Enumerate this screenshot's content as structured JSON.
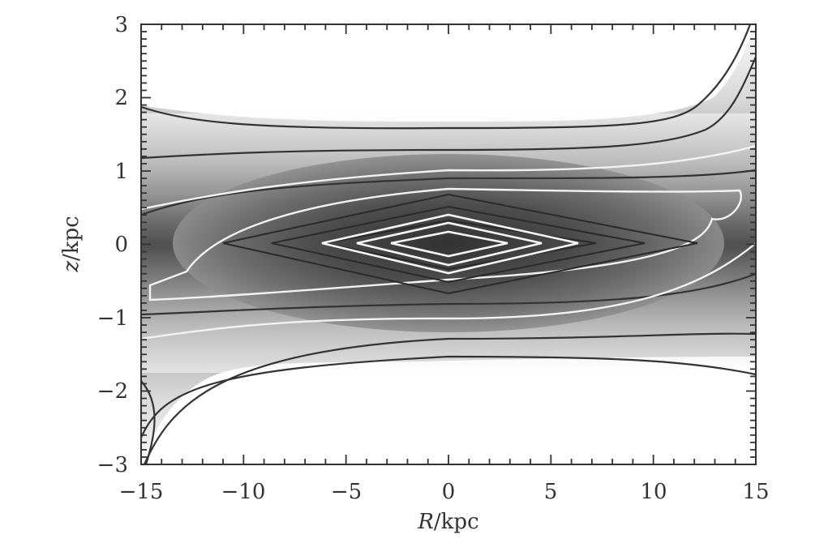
{
  "chart_data": {
    "type": "contour",
    "title": "",
    "xlabel": "R/kpc",
    "ylabel": "z/kpc",
    "xlabel_var": "R",
    "xlabel_unit": "/kpc",
    "ylabel_var": "z",
    "ylabel_unit": "/kpc",
    "xlim": [
      -15,
      15
    ],
    "ylim": [
      -3,
      3
    ],
    "x_ticks": [
      -15,
      -10,
      -5,
      0,
      5,
      10,
      15
    ],
    "y_ticks": [
      -3,
      -2,
      -1,
      0,
      1,
      2,
      3
    ],
    "x_tick_labels": [
      "−15",
      "−10",
      "−5",
      "0",
      "5",
      "10",
      "15"
    ],
    "y_tick_labels": [
      "−3",
      "−2",
      "−1",
      "0",
      "1",
      "2",
      "3"
    ],
    "x_minor_tick_step": 1,
    "y_minor_tick_step": 0.1,
    "grid": false,
    "legend": null,
    "colormap": "grayscale, darker = higher density",
    "description": "Density contours in the meridional (R,z) plane: diamond-shaped inner contours centered at origin, flattened disc-like outer contours flaring at large |R|.",
    "contours": [
      {
        "color": "white",
        "shape": "diamond",
        "half_width_R": 2.5,
        "half_height_z": 0.15
      },
      {
        "color": "white",
        "shape": "diamond",
        "half_width_R": 4.2,
        "half_height_z": 0.27
      },
      {
        "color": "white",
        "shape": "diamond",
        "half_width_R": 6.2,
        "half_height_z": 0.4
      },
      {
        "color": "dark",
        "shape": "diamond",
        "half_width_R": 8.0,
        "half_height_z": 0.5
      },
      {
        "color": "dark",
        "shape": "diamond",
        "half_width_R": 9.5,
        "half_height_z": 0.6
      },
      {
        "color": "dark",
        "shape": "lens",
        "half_width_R": 11.0,
        "half_height_z": 0.7
      },
      {
        "color": "white",
        "shape": "skewed-lens",
        "half_width_R": 13.0,
        "half_height_z": 0.85
      },
      {
        "color": "white",
        "shape": "open-band",
        "z_center": 1.0
      },
      {
        "color": "dark",
        "shape": "open-band",
        "z_center": 1.15
      },
      {
        "color": "dark",
        "shape": "open-band-flaring",
        "z_center": 1.4
      }
    ]
  }
}
